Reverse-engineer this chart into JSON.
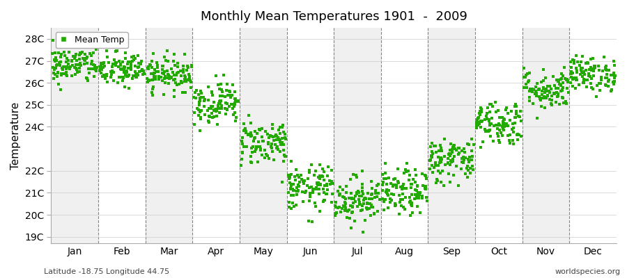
{
  "title": "Monthly Mean Temperatures 1901  -  2009",
  "ylabel": "Temperature",
  "xlabel_months": [
    "Jan",
    "Feb",
    "Mar",
    "Apr",
    "May",
    "Jun",
    "Jul",
    "Aug",
    "Sep",
    "Oct",
    "Nov",
    "Dec"
  ],
  "ytick_labels": [
    "19C",
    "20C",
    "21C",
    "22C",
    "24C",
    "25C",
    "26C",
    "27C",
    "28C"
  ],
  "ytick_values": [
    19,
    20,
    21,
    22,
    24,
    25,
    26,
    27,
    28
  ],
  "ylim": [
    18.7,
    28.5
  ],
  "marker_color": "#22aa00",
  "marker_size": 5,
  "legend_label": "Mean Temp",
  "footnote_left": "Latitude -18.75 Longitude 44.75",
  "footnote_right": "worldspecies.org",
  "background_color": "#ffffff",
  "band_color_odd": "#f0f0f0",
  "band_color_even": "#ffffff",
  "monthly_means": [
    26.8,
    26.6,
    26.4,
    25.1,
    23.3,
    21.2,
    20.7,
    21.0,
    22.5,
    24.2,
    25.7,
    26.4
  ],
  "monthly_stds": [
    0.42,
    0.4,
    0.38,
    0.48,
    0.52,
    0.52,
    0.52,
    0.52,
    0.52,
    0.52,
    0.46,
    0.4
  ],
  "n_years": 109,
  "seed": 42
}
